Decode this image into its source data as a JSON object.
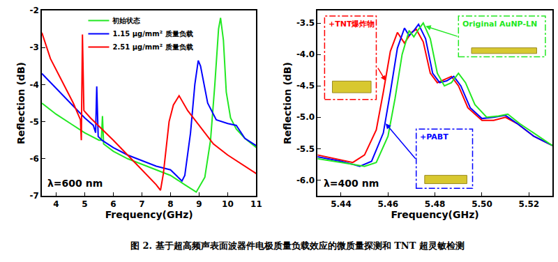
{
  "chart_data": [
    {
      "type": "line",
      "x_label": "Frequency(GHz)",
      "y_label": "Reflection (dB)",
      "xlim": [
        3.5,
        11
      ],
      "xticks": [
        4,
        5,
        6,
        7,
        8,
        9,
        10,
        11
      ],
      "ylim": [
        -7,
        -2
      ],
      "yticks": [
        -7,
        -6,
        -5,
        -4,
        -3,
        -2
      ],
      "legend": "top",
      "annotations": [
        "λ=600 nm"
      ],
      "series": [
        {
          "name": "初始状态",
          "color": "#22e822",
          "x": [
            3.5,
            4,
            4.5,
            5,
            5.5,
            5.58,
            5.62,
            5.66,
            6,
            6.5,
            7,
            7.5,
            8,
            8.5,
            8.9,
            9.2,
            9.4,
            9.55,
            9.68,
            9.75,
            9.85,
            9.95,
            10.1,
            10.3,
            10.6,
            11
          ],
          "values": [
            -4.5,
            -4.8,
            -5.05,
            -5.3,
            -5.5,
            -5.5,
            -4.85,
            -5.6,
            -5.8,
            -6.0,
            -6.15,
            -6.3,
            -6.45,
            -6.7,
            -6.9,
            -6.5,
            -5.5,
            -4.0,
            -2.5,
            -2.2,
            -2.8,
            -4.2,
            -4.9,
            -5.2,
            -5.45,
            -5.7
          ]
        },
        {
          "name": "1.15 μg/mm² 质量负载",
          "color": "#0000ff",
          "x": [
            3.5,
            4,
            4.5,
            5,
            5.3,
            5.38,
            5.42,
            5.47,
            5.6,
            6,
            6.5,
            7,
            7.5,
            8,
            8.4,
            8.5,
            8.7,
            8.85,
            8.97,
            9.05,
            9.3,
            9.6,
            10,
            10.3,
            10.6,
            11
          ],
          "values": [
            -3.7,
            -4.1,
            -4.5,
            -4.9,
            -5.1,
            -5.3,
            -4.05,
            -5.4,
            -5.5,
            -5.7,
            -5.9,
            -6.05,
            -6.2,
            -6.3,
            -6.6,
            -6.45,
            -5.3,
            -4.0,
            -3.35,
            -3.5,
            -4.5,
            -4.95,
            -5.05,
            -5.1,
            -5.45,
            -5.65
          ]
        },
        {
          "name": "2.51 μg/mm² 质量负载",
          "color": "#ff0000",
          "x": [
            3.5,
            3.8,
            4.2,
            4.6,
            4.85,
            4.88,
            4.92,
            4.97,
            5.2,
            5.6,
            6,
            6.5,
            7,
            7.5,
            7.65,
            7.75,
            7.95,
            8.1,
            8.3,
            8.6,
            9,
            9.5,
            10,
            10.5,
            11
          ],
          "values": [
            -2.6,
            -3.3,
            -3.9,
            -4.5,
            -4.95,
            -5.5,
            -2.65,
            -4.7,
            -4.9,
            -5.2,
            -5.5,
            -5.9,
            -6.3,
            -6.7,
            -6.85,
            -6.4,
            -5.0,
            -4.55,
            -4.3,
            -4.7,
            -5.1,
            -5.6,
            -5.9,
            -6.15,
            -6.4
          ]
        }
      ]
    },
    {
      "type": "line",
      "x_label": "Frequency(GHz)",
      "y_label": "Reflection (dB)",
      "xlim": [
        5.43,
        5.53
      ],
      "xticks": [
        5.44,
        5.46,
        5.48,
        {
          "value": 5.5,
          "label": "5.50"
        },
        5.52
      ],
      "ylim": [
        -6.25,
        -3.3
      ],
      "yticks": [
        {
          "value": -6,
          "label": "-6.0"
        },
        -5.5,
        {
          "value": -5,
          "label": "-5.0"
        },
        -4.5,
        {
          "value": -4,
          "label": "-4.0"
        },
        -3.5
      ],
      "annotations": [
        "λ=400 nm"
      ],
      "series": [
        {
          "name": "+TNT爆炸物",
          "color": "#ff0000",
          "x": [
            5.43,
            5.44,
            5.445,
            5.45,
            5.455,
            5.458,
            5.461,
            5.464,
            5.467,
            5.47,
            5.472,
            5.475,
            5.478,
            5.481,
            5.484,
            5.487,
            5.49,
            5.494,
            5.5,
            5.505,
            5.51,
            5.515,
            5.522,
            5.53
          ],
          "values": [
            -5.6,
            -5.68,
            -5.72,
            -5.6,
            -5.2,
            -4.6,
            -3.95,
            -3.65,
            -3.82,
            -3.65,
            -3.6,
            -3.8,
            -4.3,
            -4.45,
            -4.4,
            -4.35,
            -4.5,
            -4.85,
            -5.05,
            -5.05,
            -5.0,
            -5.1,
            -5.3,
            -5.45
          ]
        },
        {
          "name": "+PABT",
          "color": "#0000ff",
          "x": [
            5.43,
            5.44,
            5.448,
            5.453,
            5.458,
            5.461,
            5.464,
            5.467,
            5.469,
            5.471,
            5.473,
            5.476,
            5.479,
            5.482,
            5.485,
            5.488,
            5.491,
            5.495,
            5.5,
            5.505,
            5.51,
            5.515,
            5.522,
            5.53
          ],
          "values": [
            -5.63,
            -5.7,
            -5.78,
            -5.7,
            -5.25,
            -4.6,
            -3.9,
            -3.58,
            -3.7,
            -3.62,
            -3.52,
            -3.75,
            -4.3,
            -4.45,
            -4.42,
            -4.35,
            -4.5,
            -4.85,
            -5.02,
            -5.0,
            -4.97,
            -5.1,
            -5.3,
            -5.45
          ]
        },
        {
          "name": "Original AuNP-LN",
          "color": "#22e822",
          "x": [
            5.43,
            5.44,
            5.45,
            5.455,
            5.46,
            5.463,
            5.466,
            5.469,
            5.471,
            5.473,
            5.475,
            5.478,
            5.481,
            5.484,
            5.487,
            5.49,
            5.493,
            5.497,
            5.502,
            5.507,
            5.511,
            5.516,
            5.522,
            5.53
          ],
          "values": [
            -5.66,
            -5.72,
            -5.78,
            -5.72,
            -5.3,
            -4.7,
            -4.0,
            -3.62,
            -3.72,
            -3.6,
            -3.5,
            -3.75,
            -4.3,
            -4.5,
            -4.45,
            -4.3,
            -4.45,
            -4.8,
            -5.0,
            -4.98,
            -4.95,
            -5.1,
            -5.25,
            -5.45
          ]
        }
      ]
    }
  ],
  "caption": "图 2. 基于超高频声表面波器件电极质量负载效应的微质量探测和 TNT 超灵敏检测"
}
